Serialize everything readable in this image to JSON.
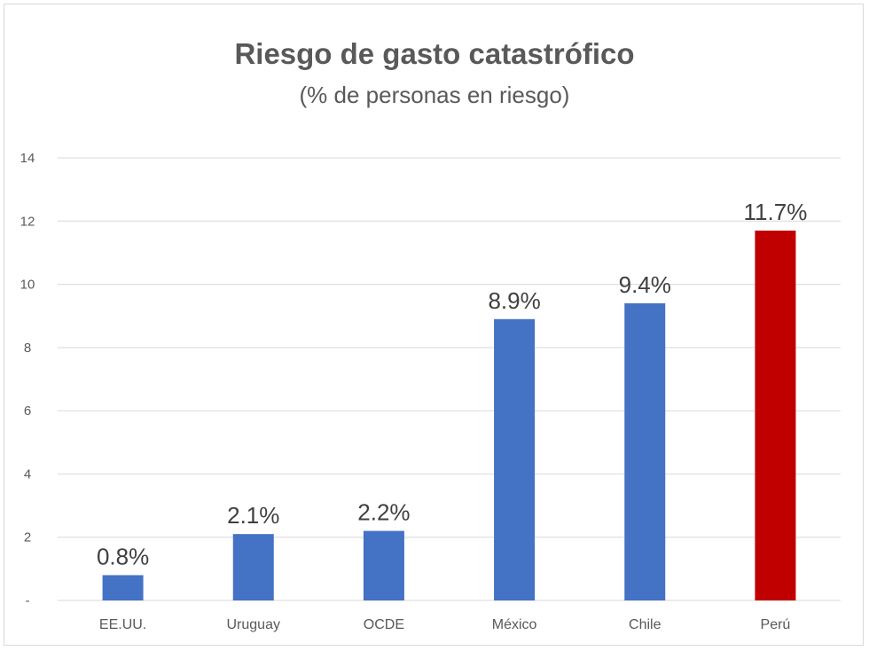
{
  "chart_data": {
    "type": "bar",
    "title": "Riesgo de gasto catastrófico",
    "subtitle": "(% de personas en riesgo)",
    "categories": [
      "EE.UU.",
      "Uruguay",
      "OCDE",
      "México",
      "Chile",
      "Perú"
    ],
    "values": [
      0.8,
      2.1,
      2.2,
      8.9,
      9.4,
      11.7
    ],
    "data_labels": [
      "0.8%",
      "2.1%",
      "2.2%",
      "8.9%",
      "9.4%",
      "11.7%"
    ],
    "colors": [
      "#4472c4",
      "#4472c4",
      "#4472c4",
      "#4472c4",
      "#4472c4",
      "#c00000"
    ],
    "yticks": [
      0,
      2,
      4,
      6,
      8,
      10,
      12,
      14
    ],
    "ytick_labels": [
      "-",
      "2",
      "4",
      "6",
      "8",
      "10",
      "12",
      "14"
    ],
    "ylim": [
      0,
      14
    ],
    "xlabel": "",
    "ylabel": "",
    "grid": true,
    "legend": "none"
  }
}
